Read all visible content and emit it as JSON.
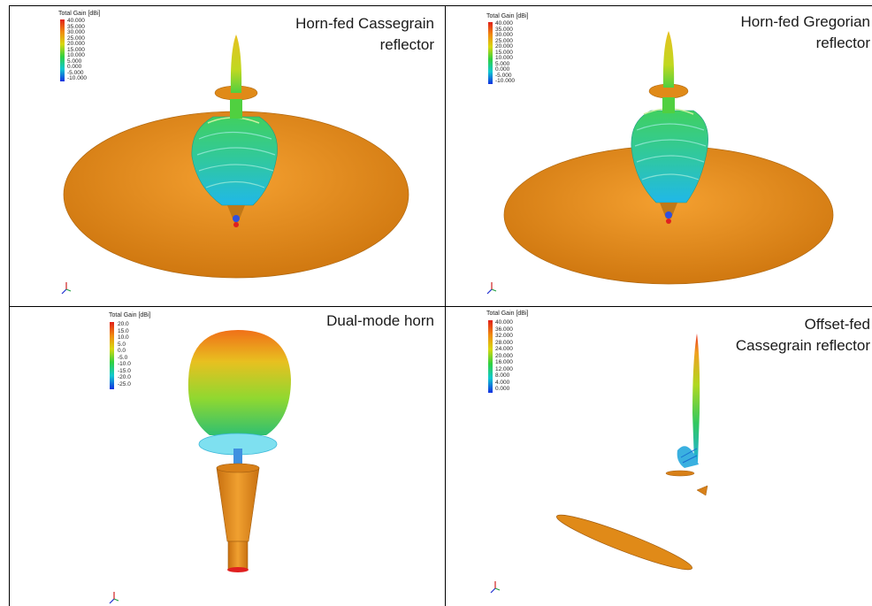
{
  "panels": {
    "cassegrain": {
      "title_line1": "Horn-fed Cassegrain",
      "title_line2": "reflector",
      "legend_title": "Total Gain [dBi]",
      "legend_values": [
        "40.000",
        "35.000",
        "30.000",
        "25.000",
        "20.000",
        "15.000",
        "10.000",
        "5.000",
        "0.000",
        "-5.000",
        "-10.000"
      ]
    },
    "gregorian": {
      "title_line1": "Horn-fed Gregorian",
      "title_line2": "reflector",
      "legend_title": "Total Gain [dBi]",
      "legend_values": [
        "40.000",
        "35.000",
        "30.000",
        "25.000",
        "20.000",
        "15.000",
        "10.000",
        "5.000",
        "0.000",
        "-5.000",
        "-10.000"
      ]
    },
    "horn": {
      "title_line1": "Dual-mode horn",
      "legend_title": "Total Gain [dBi]",
      "legend_values": [
        "20.0",
        "15.0",
        "10.0",
        "5.0",
        "0.0",
        "-5.0",
        "-10.0",
        "-15.0",
        "-20.0",
        "-25.0"
      ]
    },
    "offset": {
      "title_line1": "Offset-fed",
      "title_line2": "Cassegrain reflector",
      "legend_title": "Total Gain [dBi]",
      "legend_values": [
        "40.000",
        "36.000",
        "32.000",
        "28.000",
        "24.000",
        "20.000",
        "16.000",
        "12.000",
        "8.000",
        "4.000",
        "0.000"
      ]
    }
  },
  "colors": {
    "reflector": "#e08a18",
    "reflector_edge": "#b86a10"
  }
}
